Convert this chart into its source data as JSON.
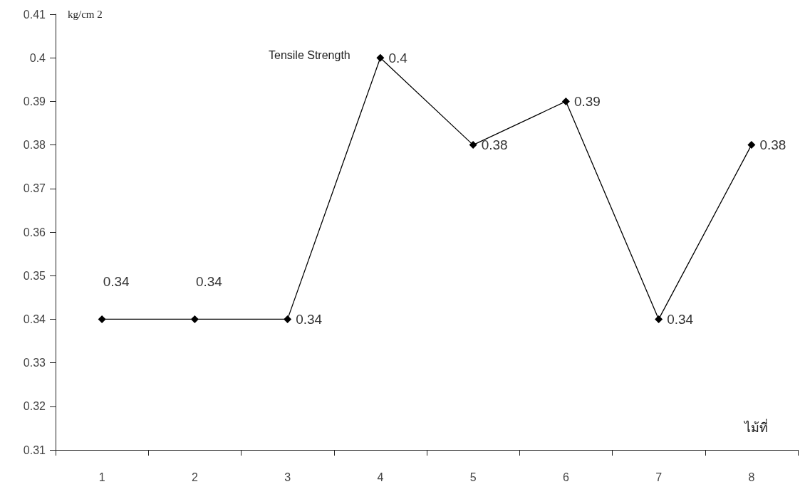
{
  "chart_data": {
    "type": "line",
    "title": "Tensile Strength",
    "ylabel": "kg/cm 2",
    "xlabel": "ไม้ที่",
    "categories": [
      "1",
      "2",
      "3",
      "4",
      "5",
      "6",
      "7",
      "8"
    ],
    "series": [
      {
        "color": "#000000",
        "values": [
          0.34,
          0.34,
          0.34,
          0.4,
          0.38,
          0.39,
          0.34,
          0.38
        ]
      }
    ],
    "ylim": [
      0.31,
      0.41
    ],
    "yticks": [
      0.31,
      0.32,
      0.33,
      0.34,
      0.35,
      0.36,
      0.37,
      0.38,
      0.39,
      0.4,
      0.41
    ],
    "grid": false,
    "marker": "diamond",
    "line_style": "solid",
    "data_labels": true
  }
}
